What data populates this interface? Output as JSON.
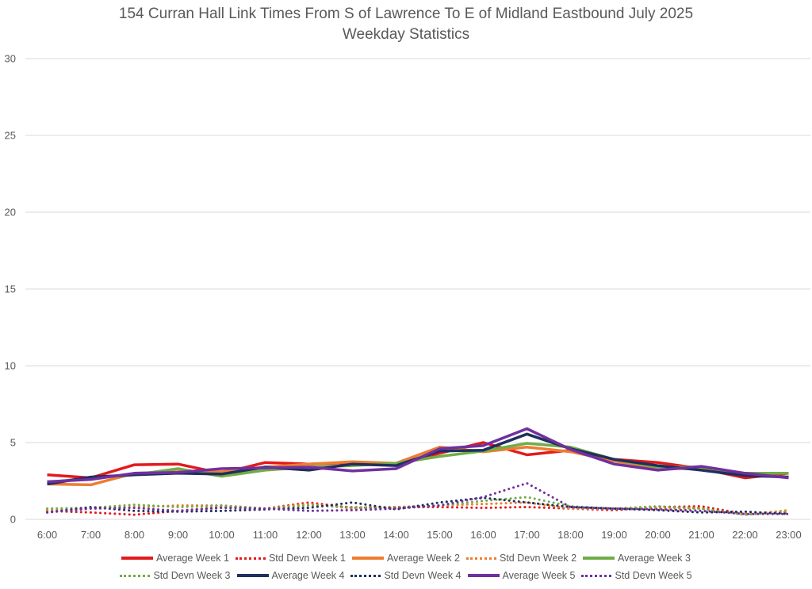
{
  "chart_data": {
    "type": "line",
    "title": "154 Curran Hall Link Times From S of Lawrence To E of Midland Eastbound July 2025",
    "subtitle": "Weekday Statistics",
    "xlabel": "",
    "ylabel": "",
    "ylim": [
      0,
      30
    ],
    "yticks": [
      0,
      5,
      10,
      15,
      20,
      25,
      30
    ],
    "grid": true,
    "legend_position": "bottom",
    "categories": [
      "6:00",
      "7:00",
      "8:00",
      "9:00",
      "10:00",
      "11:00",
      "12:00",
      "13:00",
      "14:00",
      "15:00",
      "16:00",
      "17:00",
      "18:00",
      "19:00",
      "20:00",
      "21:00",
      "22:00",
      "23:00"
    ],
    "series": [
      {
        "name": "Average Week 1",
        "style": "solid",
        "color": "#e31a1c",
        "values": [
          2.9,
          2.7,
          3.55,
          3.6,
          3.0,
          3.7,
          3.6,
          3.7,
          3.6,
          4.3,
          5.0,
          4.2,
          4.5,
          3.9,
          3.7,
          3.3,
          2.7,
          3.0
        ]
      },
      {
        "name": "Std Devn Week 1",
        "style": "dotted",
        "color": "#e31a1c",
        "values": [
          0.55,
          0.45,
          0.3,
          0.55,
          0.8,
          0.7,
          1.1,
          0.75,
          0.8,
          0.8,
          0.75,
          0.8,
          0.7,
          0.6,
          0.8,
          0.85,
          0.35,
          0.45
        ]
      },
      {
        "name": "Average Week 2",
        "style": "solid",
        "color": "#ed7d31",
        "values": [
          2.3,
          2.25,
          3.0,
          3.1,
          3.1,
          3.4,
          3.6,
          3.75,
          3.65,
          4.7,
          4.4,
          4.7,
          4.4,
          3.8,
          3.3,
          3.3,
          2.9,
          2.75
        ]
      },
      {
        "name": "Std Devn Week 2",
        "style": "dotted",
        "color": "#ed7d31",
        "values": [
          0.6,
          0.7,
          0.8,
          0.9,
          0.9,
          0.7,
          1.0,
          0.7,
          0.8,
          0.9,
          1.0,
          1.1,
          0.7,
          0.7,
          0.7,
          0.7,
          0.3,
          0.6
        ]
      },
      {
        "name": "Average Week 3",
        "style": "solid",
        "color": "#70ad47",
        "values": [
          2.4,
          2.7,
          2.9,
          3.3,
          2.8,
          3.2,
          3.4,
          3.5,
          3.65,
          4.1,
          4.45,
          4.95,
          4.7,
          3.9,
          3.4,
          3.4,
          3.0,
          3.0
        ]
      },
      {
        "name": "Std Devn Week 3",
        "style": "dotted",
        "color": "#70ad47",
        "values": [
          0.7,
          0.75,
          0.95,
          0.8,
          0.9,
          0.7,
          0.9,
          0.8,
          0.75,
          0.9,
          1.2,
          1.45,
          0.85,
          0.7,
          0.85,
          0.7,
          0.3,
          0.5
        ]
      },
      {
        "name": "Average Week 4",
        "style": "solid",
        "color": "#1f2f5e",
        "values": [
          2.3,
          2.75,
          2.9,
          3.0,
          2.95,
          3.4,
          3.2,
          3.6,
          3.5,
          4.45,
          4.5,
          5.55,
          4.6,
          3.9,
          3.5,
          3.2,
          2.85,
          2.75
        ]
      },
      {
        "name": "Std Devn Week 4",
        "style": "dotted",
        "color": "#1f2f5e",
        "values": [
          0.45,
          0.8,
          0.55,
          0.5,
          0.55,
          0.65,
          0.75,
          1.1,
          0.65,
          1.1,
          1.4,
          1.1,
          0.8,
          0.7,
          0.6,
          0.45,
          0.5,
          0.35
        ]
      },
      {
        "name": "Average Week 5",
        "style": "solid",
        "color": "#7030a0",
        "values": [
          2.45,
          2.6,
          3.0,
          3.05,
          3.3,
          3.35,
          3.4,
          3.15,
          3.3,
          4.6,
          4.8,
          5.9,
          4.55,
          3.6,
          3.2,
          3.45,
          3.0,
          2.7
        ]
      },
      {
        "name": "Std Devn Week 5",
        "style": "dotted",
        "color": "#7030a0",
        "values": [
          0.45,
          0.7,
          0.75,
          0.55,
          0.75,
          0.7,
          0.55,
          0.6,
          0.7,
          0.9,
          1.45,
          2.35,
          0.8,
          0.7,
          0.65,
          0.55,
          0.35,
          0.35
        ]
      }
    ]
  }
}
